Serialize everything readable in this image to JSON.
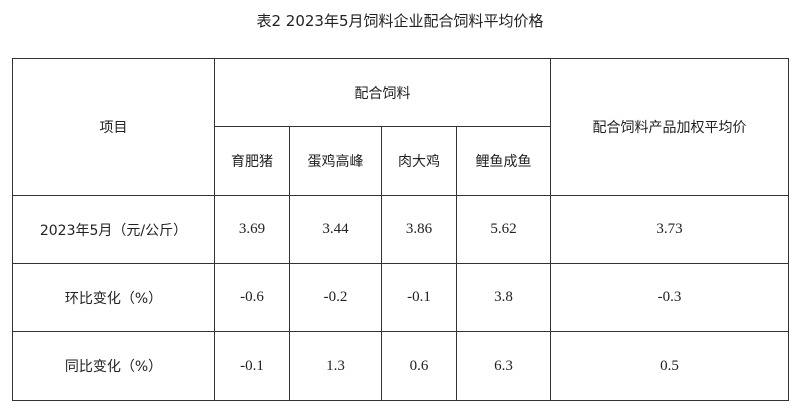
{
  "title": "表2  2023年5月饲料企业配合饲料平均价格",
  "header": {
    "item": "项目",
    "group": "配合饲料",
    "weighted": "配合饲料产品加权平均价",
    "columns": [
      "育肥猪",
      "蛋鸡高峰",
      "肉大鸡",
      "鲤鱼成鱼"
    ]
  },
  "rows": [
    {
      "label": "2023年5月（元/公斤）",
      "values": [
        "3.69",
        "3.44",
        "3.86",
        "5.62"
      ],
      "weighted": "3.73"
    },
    {
      "label": "环比变化（%）",
      "values": [
        "-0.6",
        "-0.2",
        "-0.1",
        "3.8"
      ],
      "weighted": "-0.3"
    },
    {
      "label": "同比变化（%）",
      "values": [
        "-0.1",
        "1.3",
        "0.6",
        "6.3"
      ],
      "weighted": "0.5"
    }
  ]
}
